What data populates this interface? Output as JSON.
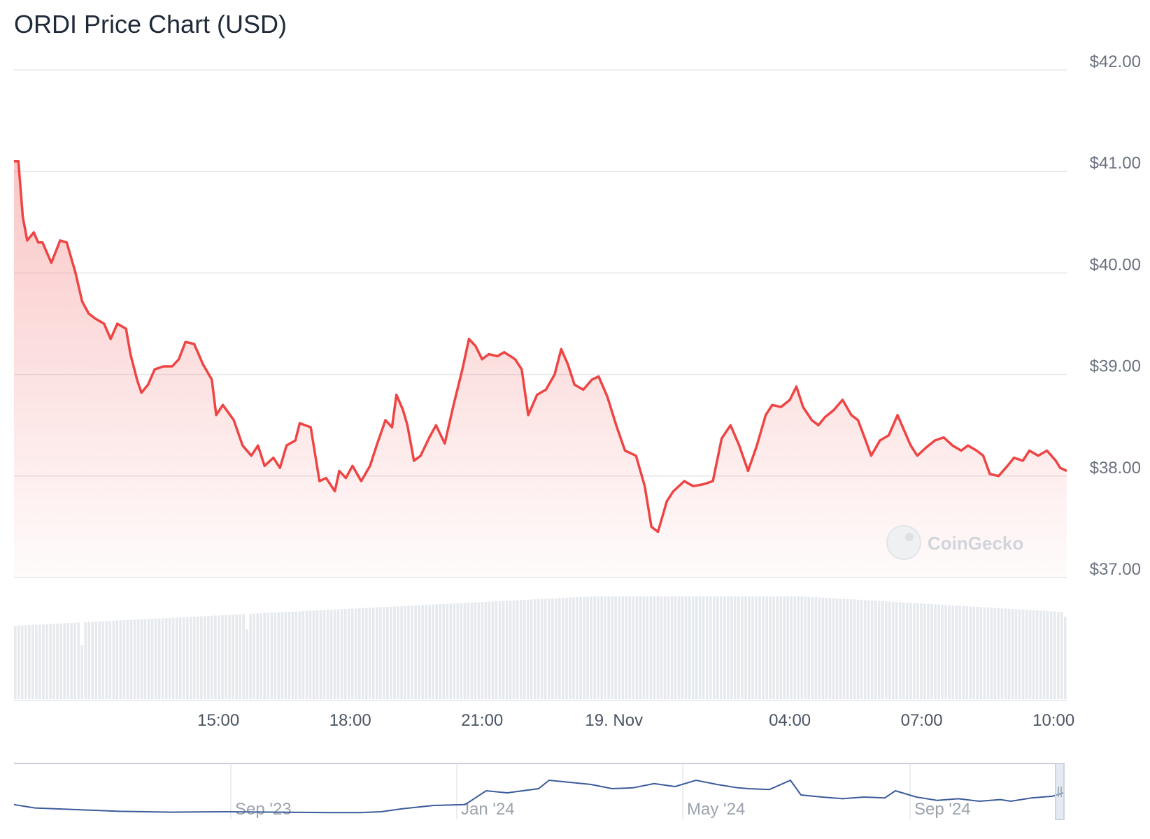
{
  "chart_data": {
    "type": "line",
    "title": "ORDI Price Chart (USD)",
    "currency": "USD",
    "y_ticks": [
      "$42.00",
      "$41.00",
      "$40.00",
      "$39.00",
      "$38.00",
      "$37.00"
    ],
    "ylim": [
      37,
      42
    ],
    "x_ticks": [
      "15:00",
      "18:00",
      "21:00",
      "19. Nov",
      "04:00",
      "07:00",
      "10:00"
    ],
    "x_tick_hours": [
      15,
      18,
      21,
      24,
      28,
      31,
      34
    ],
    "xlim_hours": [
      10.35,
      34.3
    ],
    "series": [
      {
        "type": "line",
        "color": "#ef4444",
        "points": [
          [
            10.35,
            41.1
          ],
          [
            10.45,
            41.1
          ],
          [
            10.55,
            40.55
          ],
          [
            10.65,
            40.32
          ],
          [
            10.8,
            40.4
          ],
          [
            10.9,
            40.3
          ],
          [
            11.0,
            40.3
          ],
          [
            11.2,
            40.1
          ],
          [
            11.4,
            40.32
          ],
          [
            11.55,
            40.3
          ],
          [
            11.75,
            40.0
          ],
          [
            11.9,
            39.72
          ],
          [
            12.05,
            39.6
          ],
          [
            12.2,
            39.55
          ],
          [
            12.4,
            39.5
          ],
          [
            12.55,
            39.35
          ],
          [
            12.7,
            39.5
          ],
          [
            12.9,
            39.45
          ],
          [
            13.0,
            39.2
          ],
          [
            13.15,
            38.95
          ],
          [
            13.25,
            38.82
          ],
          [
            13.4,
            38.9
          ],
          [
            13.55,
            39.05
          ],
          [
            13.75,
            39.08
          ],
          [
            13.95,
            39.08
          ],
          [
            14.1,
            39.15
          ],
          [
            14.25,
            39.32
          ],
          [
            14.45,
            39.3
          ],
          [
            14.65,
            39.1
          ],
          [
            14.85,
            38.95
          ],
          [
            14.95,
            38.6
          ],
          [
            15.1,
            38.7
          ],
          [
            15.35,
            38.55
          ],
          [
            15.55,
            38.3
          ],
          [
            15.75,
            38.2
          ],
          [
            15.9,
            38.3
          ],
          [
            16.05,
            38.1
          ],
          [
            16.25,
            38.18
          ],
          [
            16.4,
            38.08
          ],
          [
            16.55,
            38.3
          ],
          [
            16.75,
            38.35
          ],
          [
            16.85,
            38.52
          ],
          [
            17.1,
            38.48
          ],
          [
            17.3,
            37.95
          ],
          [
            17.45,
            37.98
          ],
          [
            17.65,
            37.85
          ],
          [
            17.75,
            38.05
          ],
          [
            17.9,
            37.98
          ],
          [
            18.05,
            38.1
          ],
          [
            18.25,
            37.95
          ],
          [
            18.45,
            38.1
          ],
          [
            18.6,
            38.3
          ],
          [
            18.8,
            38.55
          ],
          [
            18.95,
            38.48
          ],
          [
            19.05,
            38.8
          ],
          [
            19.2,
            38.65
          ],
          [
            19.3,
            38.5
          ],
          [
            19.45,
            38.15
          ],
          [
            19.6,
            38.2
          ],
          [
            19.8,
            38.38
          ],
          [
            19.95,
            38.5
          ],
          [
            20.15,
            38.32
          ],
          [
            20.35,
            38.7
          ],
          [
            20.55,
            39.05
          ],
          [
            20.7,
            39.35
          ],
          [
            20.85,
            39.28
          ],
          [
            21.0,
            39.15
          ],
          [
            21.15,
            39.2
          ],
          [
            21.35,
            39.18
          ],
          [
            21.5,
            39.22
          ],
          [
            21.75,
            39.15
          ],
          [
            21.9,
            39.05
          ],
          [
            22.05,
            38.6
          ],
          [
            22.25,
            38.8
          ],
          [
            22.45,
            38.85
          ],
          [
            22.65,
            39.0
          ],
          [
            22.8,
            39.25
          ],
          [
            22.95,
            39.1
          ],
          [
            23.1,
            38.9
          ],
          [
            23.3,
            38.85
          ],
          [
            23.5,
            38.95
          ],
          [
            23.65,
            38.98
          ],
          [
            23.85,
            38.78
          ],
          [
            24.05,
            38.5
          ],
          [
            24.25,
            38.25
          ],
          [
            24.5,
            38.2
          ],
          [
            24.7,
            37.9
          ],
          [
            24.85,
            37.5
          ],
          [
            25.0,
            37.45
          ],
          [
            25.2,
            37.75
          ],
          [
            25.35,
            37.85
          ],
          [
            25.6,
            37.95
          ],
          [
            25.8,
            37.9
          ],
          [
            26.05,
            37.92
          ],
          [
            26.25,
            37.95
          ],
          [
            26.45,
            38.37
          ],
          [
            26.65,
            38.5
          ],
          [
            26.85,
            38.3
          ],
          [
            27.05,
            38.05
          ],
          [
            27.25,
            38.3
          ],
          [
            27.45,
            38.6
          ],
          [
            27.6,
            38.7
          ],
          [
            27.8,
            38.68
          ],
          [
            28.0,
            38.75
          ],
          [
            28.15,
            38.88
          ],
          [
            28.3,
            38.68
          ],
          [
            28.5,
            38.55
          ],
          [
            28.65,
            38.5
          ],
          [
            28.8,
            38.58
          ],
          [
            29.0,
            38.65
          ],
          [
            29.2,
            38.75
          ],
          [
            29.4,
            38.6
          ],
          [
            29.55,
            38.55
          ],
          [
            29.7,
            38.38
          ],
          [
            29.85,
            38.2
          ],
          [
            30.05,
            38.35
          ],
          [
            30.25,
            38.4
          ],
          [
            30.45,
            38.6
          ],
          [
            30.6,
            38.45
          ],
          [
            30.75,
            38.3
          ],
          [
            30.9,
            38.2
          ],
          [
            31.1,
            38.28
          ],
          [
            31.3,
            38.35
          ],
          [
            31.5,
            38.38
          ],
          [
            31.7,
            38.3
          ],
          [
            31.9,
            38.25
          ],
          [
            32.05,
            38.3
          ],
          [
            32.25,
            38.25
          ],
          [
            32.4,
            38.2
          ],
          [
            32.55,
            38.02
          ],
          [
            32.75,
            38.0
          ],
          [
            32.95,
            38.1
          ],
          [
            33.1,
            38.18
          ],
          [
            33.3,
            38.15
          ],
          [
            33.45,
            38.25
          ],
          [
            33.65,
            38.2
          ],
          [
            33.85,
            38.25
          ],
          [
            34.05,
            38.15
          ],
          [
            34.15,
            38.08
          ],
          [
            34.3,
            38.05
          ]
        ]
      }
    ],
    "volume_bars": 300,
    "navigator": {
      "labels": [
        "Sep '23",
        "Jan '24",
        "May '24",
        "Sep '24"
      ],
      "color": "#3b5b9a"
    },
    "grid": true
  },
  "watermark": "CoinGecko"
}
